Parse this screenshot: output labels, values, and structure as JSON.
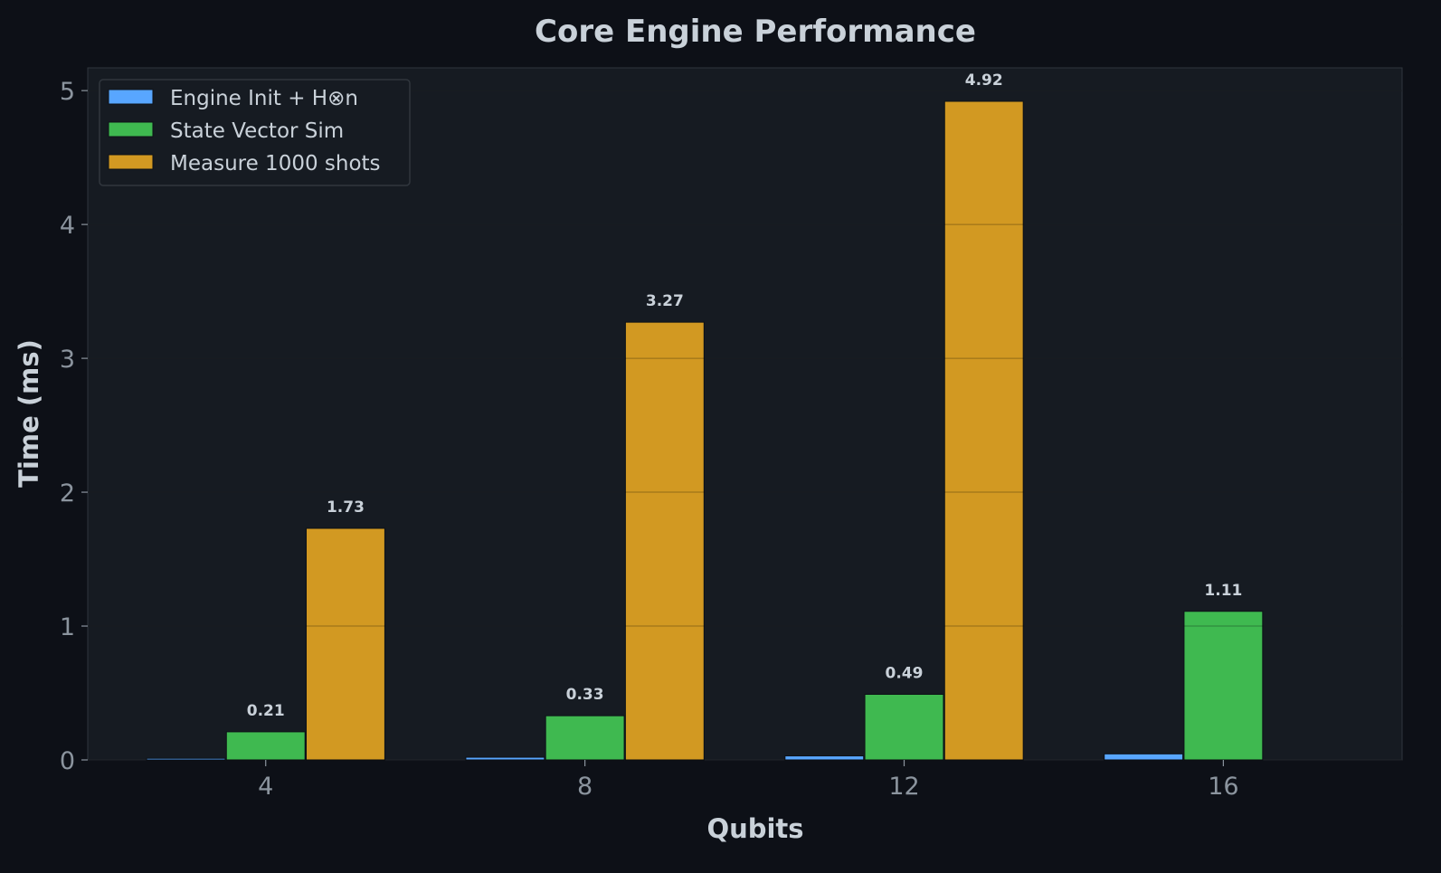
{
  "chart_data": {
    "type": "bar",
    "title": "Core Engine Performance",
    "xlabel": "Qubits",
    "ylabel": "Time (ms)",
    "categories": [
      "4",
      "8",
      "12",
      "16"
    ],
    "x": [
      4,
      8,
      12,
      16
    ],
    "xlim": [
      1.77,
      18.24
    ],
    "ylim": [
      0,
      5.17
    ],
    "yticks": [
      0,
      1,
      2,
      3,
      4,
      5
    ],
    "grid": true,
    "legend_position": "top-left",
    "series": [
      {
        "name": "Engine Init + H⊗n",
        "color": "#58a6ff",
        "values": [
          0.012,
          0.02,
          0.03,
          0.045
        ],
        "labels": [
          null,
          null,
          null,
          null
        ]
      },
      {
        "name": "State Vector Sim",
        "color": "#3fb950",
        "values": [
          0.21,
          0.33,
          0.49,
          1.11
        ],
        "labels": [
          "0.21",
          "0.33",
          "0.49",
          "1.11"
        ]
      },
      {
        "name": "Measure 1000 shots",
        "color": "#d29922",
        "values": [
          1.73,
          3.27,
          4.92,
          null
        ],
        "labels": [
          "1.73",
          "3.27",
          "4.92",
          null
        ]
      }
    ]
  }
}
